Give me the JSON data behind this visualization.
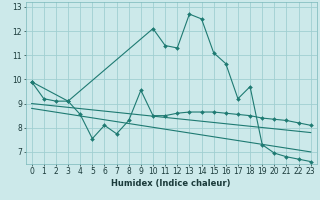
{
  "title": "",
  "xlabel": "Humidex (Indice chaleur)",
  "ylabel": "",
  "bg_color": "#cce9ea",
  "grid_color": "#a0cfd1",
  "line_color": "#1e7a72",
  "xlim": [
    -0.5,
    23.5
  ],
  "ylim": [
    6.5,
    13.2
  ],
  "yticks": [
    7,
    8,
    9,
    10,
    11,
    12,
    13
  ],
  "xticks": [
    0,
    1,
    2,
    3,
    4,
    5,
    6,
    7,
    8,
    9,
    10,
    11,
    12,
    13,
    14,
    15,
    16,
    17,
    18,
    19,
    20,
    21,
    22,
    23
  ],
  "series1_x": [
    0,
    1,
    2,
    3,
    10,
    11,
    12,
    13,
    14,
    15,
    16,
    17,
    18,
    19,
    20,
    21,
    22,
    23
  ],
  "series1_y": [
    9.9,
    9.2,
    9.1,
    9.1,
    12.1,
    11.4,
    11.3,
    12.7,
    12.5,
    11.1,
    10.65,
    9.2,
    9.7,
    7.3,
    6.95,
    6.8,
    6.7,
    6.6
  ],
  "series2_x": [
    0,
    3,
    4,
    5,
    6,
    7,
    8,
    9,
    10,
    11,
    12,
    13,
    14,
    15,
    16,
    17,
    18,
    19,
    20,
    21,
    22,
    23
  ],
  "series2_y": [
    9.9,
    9.1,
    8.55,
    7.55,
    8.1,
    7.75,
    8.3,
    9.55,
    8.5,
    8.5,
    8.6,
    8.65,
    8.65,
    8.65,
    8.6,
    8.55,
    8.5,
    8.4,
    8.35,
    8.3,
    8.2,
    8.1
  ],
  "line3_x": [
    0,
    23
  ],
  "line3_y": [
    9.0,
    7.8
  ],
  "line4_x": [
    0,
    23
  ],
  "line4_y": [
    8.8,
    7.0
  ],
  "xlabel_fontsize": 6,
  "tick_fontsize": 5.5,
  "tick_color": "#1a3a3a",
  "spine_color": "#7ab8ba"
}
